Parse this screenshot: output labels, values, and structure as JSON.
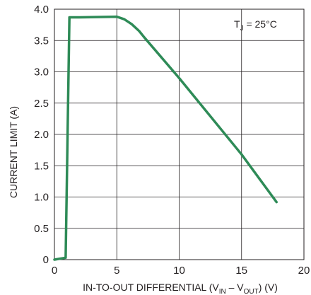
{
  "chart_data": {
    "type": "line",
    "title": "",
    "xlabel": "IN-TO-OUT DIFFERENTIAL (V",
    "xlabel_sub_in": "IN",
    "xlabel_minus": " – V",
    "xlabel_sub_out": "OUT",
    "xlabel_tail": ") (V)",
    "ylabel": "CURRENT LIMIT (A)",
    "annotation": {
      "prefix": "T",
      "sub": "J",
      "suffix": " = 25°C"
    },
    "xlim": [
      0,
      20
    ],
    "ylim": [
      0,
      4.0
    ],
    "x_ticks": [
      "0",
      "5",
      "10",
      "15",
      "20"
    ],
    "y_ticks": [
      "0",
      "0.5",
      "1.0",
      "1.5",
      "2.0",
      "2.5",
      "3.0",
      "3.5",
      "4.0"
    ],
    "grid": true,
    "line_color": "#2e8b57",
    "series": [
      {
        "x": [
          0,
          0.9,
          1.2,
          2.0,
          5.0,
          5.6,
          6.2,
          6.8,
          7.2,
          10.0,
          15.0,
          17.8
        ],
        "y": [
          0,
          0.03,
          3.87,
          3.87,
          3.88,
          3.84,
          3.76,
          3.65,
          3.55,
          2.9,
          1.68,
          0.92
        ]
      }
    ]
  }
}
